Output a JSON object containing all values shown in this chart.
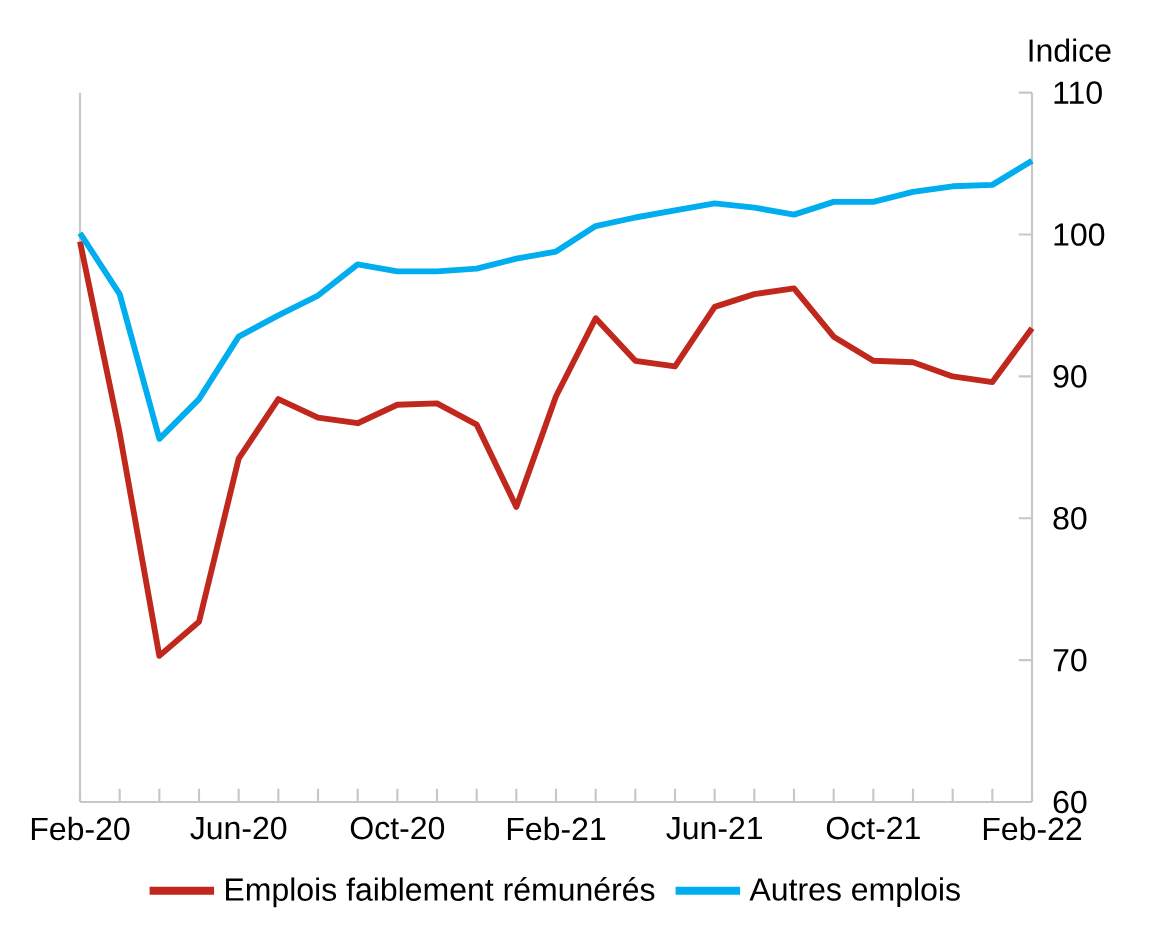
{
  "chart_data": {
    "type": "line",
    "ylabel": "Indice",
    "categories": [
      "Feb-20",
      null,
      null,
      null,
      "Jun-20",
      null,
      null,
      null,
      "Oct-20",
      null,
      null,
      null,
      "Feb-21",
      null,
      null,
      null,
      "Jun-21",
      null,
      null,
      null,
      "Oct-21",
      null,
      null,
      null,
      "Feb-22"
    ],
    "series": [
      {
        "name": "Emplois faiblement rémunérés",
        "color": "#c0281e",
        "values": [
          99.5,
          86.0,
          70.3,
          72.7,
          84.2,
          88.4,
          87.1,
          86.7,
          88.0,
          88.1,
          86.6,
          80.8,
          88.6,
          94.1,
          91.1,
          90.7,
          94.9,
          95.8,
          96.2,
          92.8,
          91.1,
          91.0,
          90.0,
          89.6,
          93.4
        ]
      },
      {
        "name": "Autres emplois",
        "color": "#00aeef",
        "values": [
          100.1,
          95.8,
          85.6,
          88.4,
          92.8,
          94.3,
          95.7,
          97.9,
          97.4,
          97.4,
          97.6,
          98.3,
          98.8,
          100.6,
          101.2,
          101.7,
          102.2,
          101.9,
          101.4,
          102.3,
          102.3,
          103.0,
          103.4,
          103.5,
          105.2
        ]
      }
    ],
    "ylim": [
      60,
      110
    ],
    "yticks": [
      60,
      70,
      80,
      90,
      100,
      110
    ],
    "grid": false,
    "legend": "bottom",
    "marker": "none",
    "line_style": "solid"
  }
}
